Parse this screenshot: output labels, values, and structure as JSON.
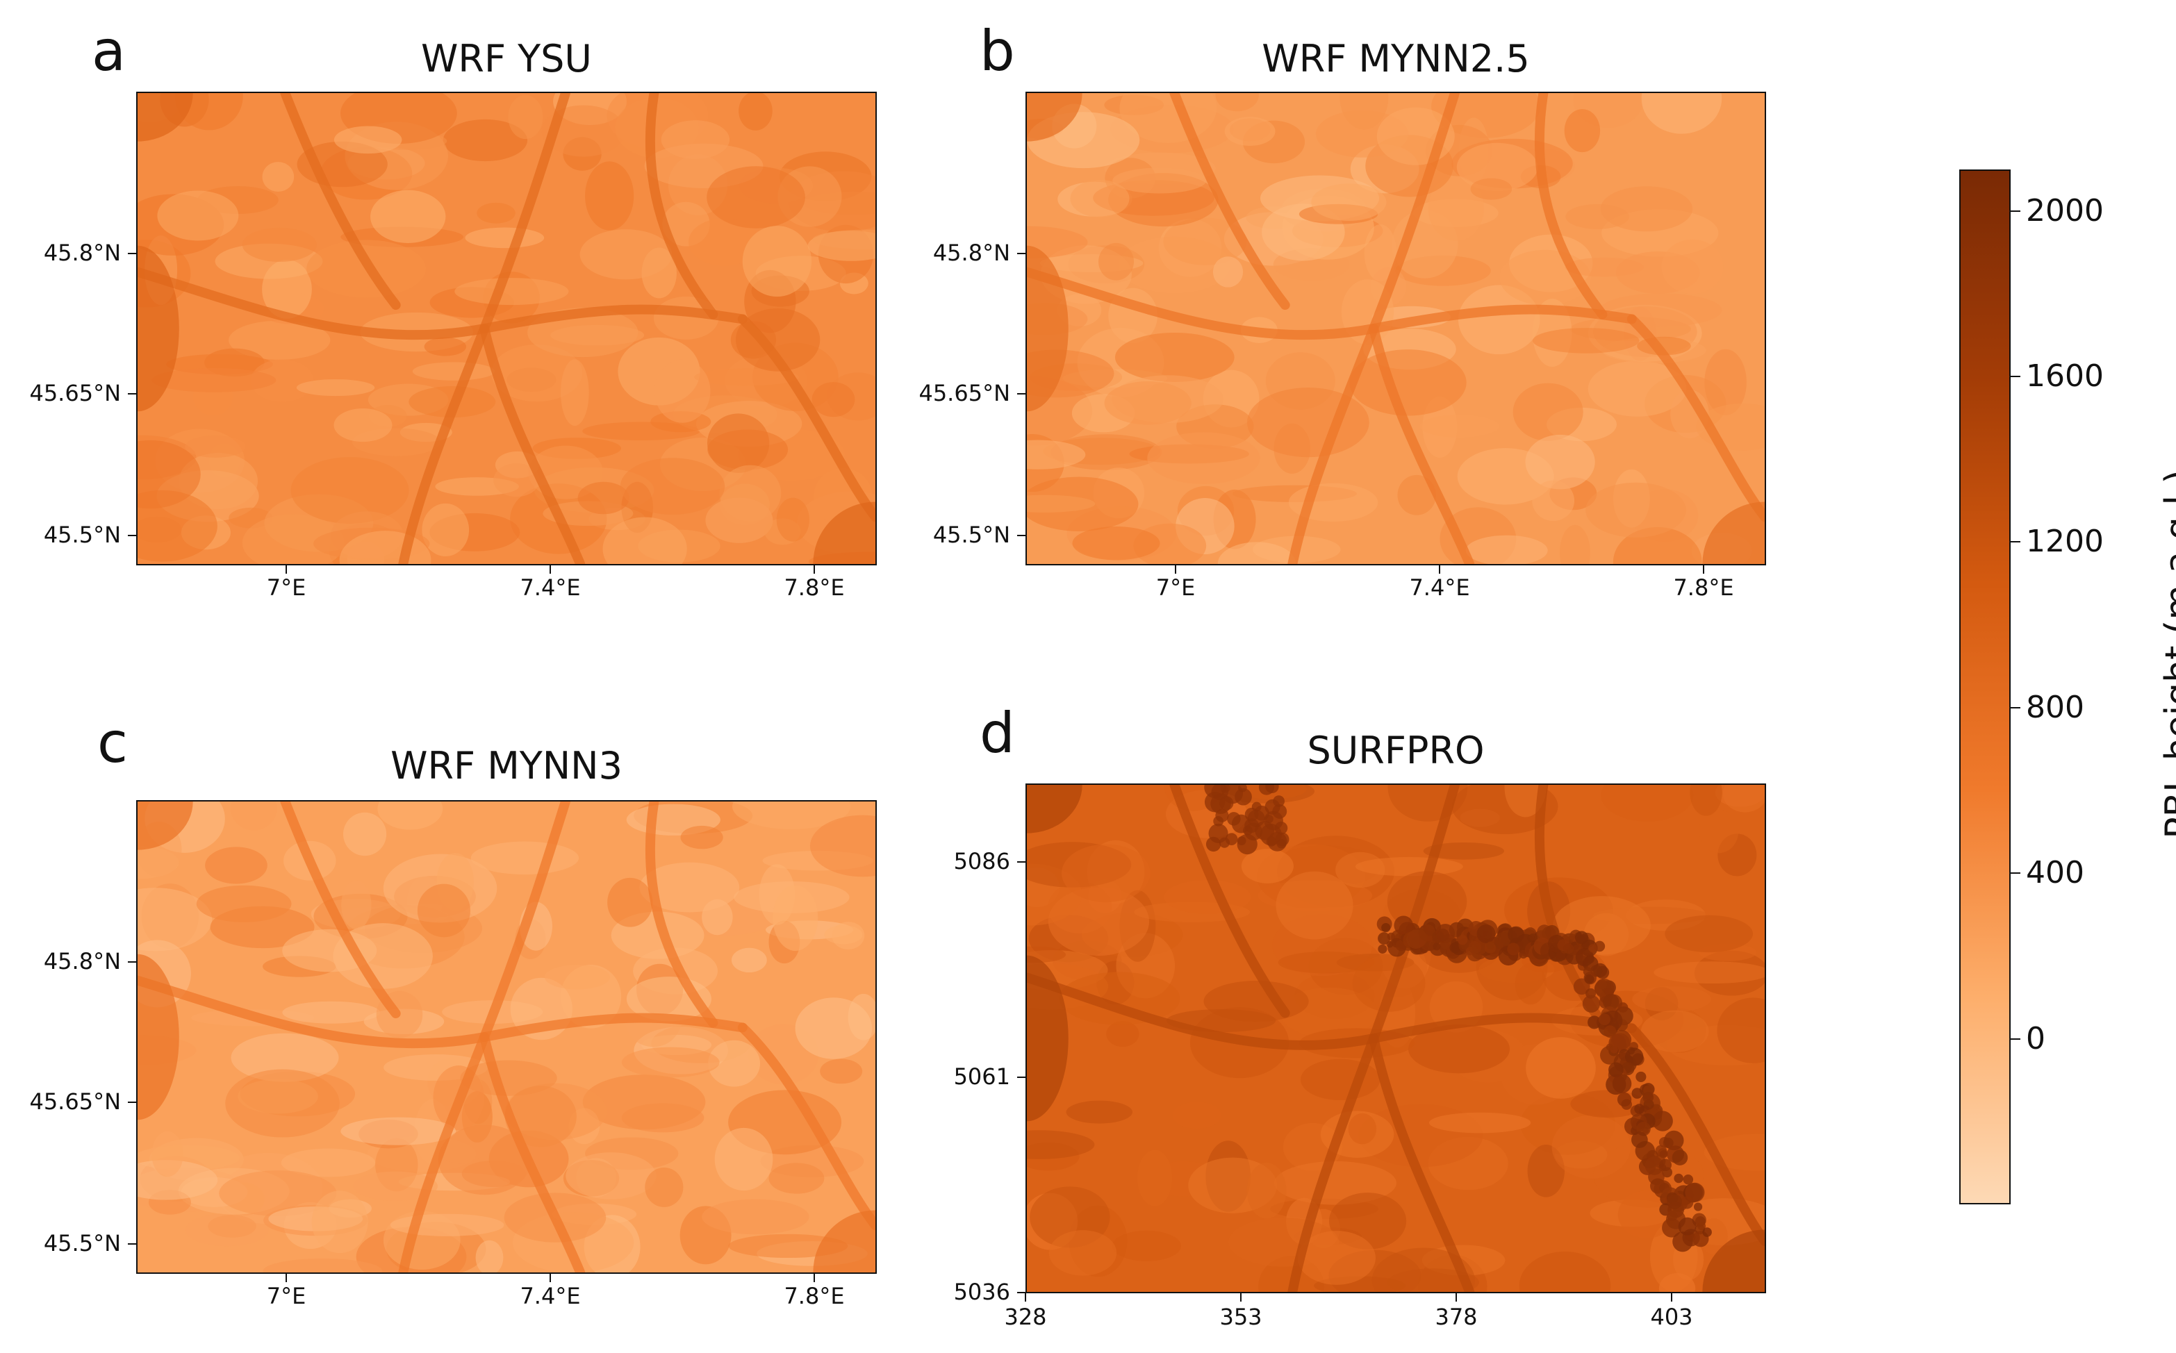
{
  "figure": {
    "colormap": "Oranges",
    "colormap_colors": [
      "#fdd9b5",
      "#fdae6b",
      "#f07a2c",
      "#d45a10",
      "#a33c06",
      "#7a2a05"
    ],
    "panels": [
      {
        "letter": "a",
        "title": "WRF YSU",
        "y_ticks": [
          "45.8°N",
          "45.65°N",
          "45.5°N"
        ],
        "x_ticks": [
          "7°E",
          "7.4°E",
          "7.8°E"
        ],
        "mean_level": 0.33
      },
      {
        "letter": "b",
        "title": "WRF MYNN2.5",
        "y_ticks": [
          "45.8°N",
          "45.65°N",
          "45.5°N"
        ],
        "x_ticks": [
          "7°E",
          "7.4°E",
          "7.8°E"
        ],
        "mean_level": 0.27
      },
      {
        "letter": "c",
        "title": "WRF MYNN3",
        "y_ticks": [
          "45.8°N",
          "45.65°N",
          "45.5°N"
        ],
        "x_ticks": [
          "7°E",
          "7.4°E",
          "7.8°E"
        ],
        "mean_level": 0.25
      },
      {
        "letter": "d",
        "title": "SURFPRO",
        "y_ticks": [
          "5086",
          "5061",
          "5036"
        ],
        "x_ticks": [
          "328",
          "353",
          "378",
          "403"
        ],
        "mean_level": 0.55
      }
    ],
    "colorbar": {
      "label": "PBL height (m a.g.l.)",
      "ticks": [
        "2000",
        "1600",
        "1200",
        "800",
        "400",
        "0"
      ],
      "tick_values": [
        2000,
        1600,
        1200,
        800,
        400,
        0
      ],
      "range": [
        -400,
        2100
      ]
    }
  }
}
